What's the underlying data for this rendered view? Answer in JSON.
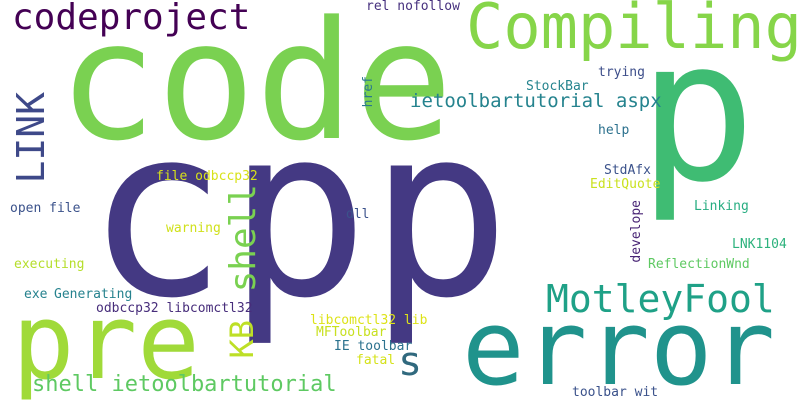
{
  "words": [
    {
      "text": "cpp",
      "color": "#443983"
    },
    {
      "text": "code",
      "color": "#7ad151"
    },
    {
      "text": "p",
      "color": "#3fbc73"
    },
    {
      "text": "error",
      "color": "#20938c"
    },
    {
      "text": "pre",
      "color": "#a0da39"
    },
    {
      "text": "Compiling",
      "color": "#86d549"
    },
    {
      "text": "codeproject",
      "color": "#440154"
    },
    {
      "text": "MotleyFool",
      "color": "#1fa187"
    },
    {
      "text": "LINK",
      "color": "#3e4989"
    },
    {
      "text": "shell",
      "color": "#7ad151"
    },
    {
      "text": "KB",
      "color": "#bddf26"
    },
    {
      "text": "s",
      "color": "#30697e"
    },
    {
      "text": "shell ietoolbartutorial",
      "color": "#5ec962"
    },
    {
      "text": "ietoolbartutorial aspx",
      "color": "#25838e"
    },
    {
      "text": "rel nofollow",
      "color": "#46307e"
    },
    {
      "text": "StockBar",
      "color": "#25848e"
    },
    {
      "text": "trying",
      "color": "#3d4e8a"
    },
    {
      "text": "href",
      "color": "#2a788e"
    },
    {
      "text": "help",
      "color": "#2c718e"
    },
    {
      "text": "StdAfx",
      "color": "#3b528b"
    },
    {
      "text": "EditQuote",
      "color": "#cae11f"
    },
    {
      "text": "file odbccp32",
      "color": "#d8e219"
    },
    {
      "text": "open file",
      "color": "#3b528b"
    },
    {
      "text": "dll",
      "color": "#3b528b"
    },
    {
      "text": "warning",
      "color": "#d0e11c"
    },
    {
      "text": "Linking",
      "color": "#27ad81"
    },
    {
      "text": "develope",
      "color": "#482475"
    },
    {
      "text": "LNK1104",
      "color": "#2db27d"
    },
    {
      "text": "executing",
      "color": "#b5de2b"
    },
    {
      "text": "ReflectionWnd",
      "color": "#5ec962"
    },
    {
      "text": "exe",
      "color": "#26828e"
    },
    {
      "text": "Generating",
      "color": "#26828e"
    },
    {
      "text": "odbccp32 libcomctl32",
      "color": "#472d7b"
    },
    {
      "text": "libcomctl32 lib",
      "color": "#dde318"
    },
    {
      "text": "MFToolbar",
      "color": "#c8e020"
    },
    {
      "text": "IE toolbar",
      "color": "#2c728e"
    },
    {
      "text": "fatal",
      "color": "#d5e21a"
    },
    {
      "text": "toolbar wit",
      "color": "#3b528b"
    }
  ]
}
